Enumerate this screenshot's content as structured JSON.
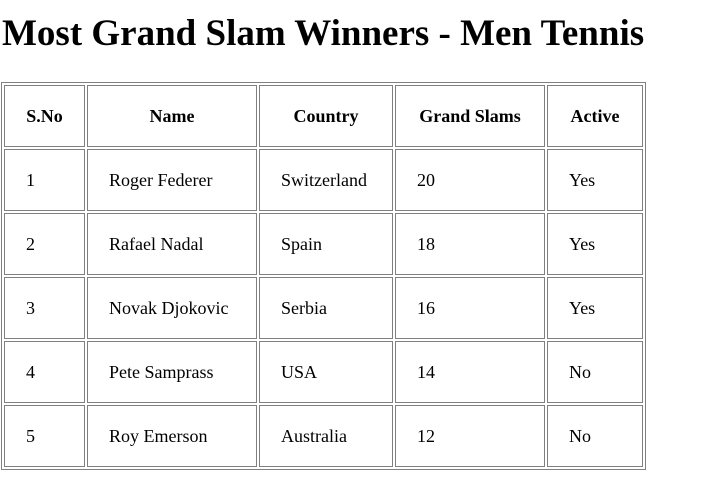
{
  "page": {
    "title": "Most Grand Slam Winners - Men Tennis"
  },
  "table": {
    "headers": [
      "S.No",
      "Name",
      "Country",
      "Grand Slams",
      "Active"
    ],
    "rows": [
      [
        "1",
        "Roger Federer",
        "Switzerland",
        "20",
        "Yes"
      ],
      [
        "2",
        "Rafael Nadal",
        "Spain",
        "18",
        "Yes"
      ],
      [
        "3",
        "Novak Djokovic",
        "Serbia",
        "16",
        "Yes"
      ],
      [
        "4",
        "Pete Samprass",
        "USA",
        "14",
        "No"
      ],
      [
        "5",
        "Roy Emerson",
        "Australia",
        "12",
        "No"
      ]
    ]
  }
}
